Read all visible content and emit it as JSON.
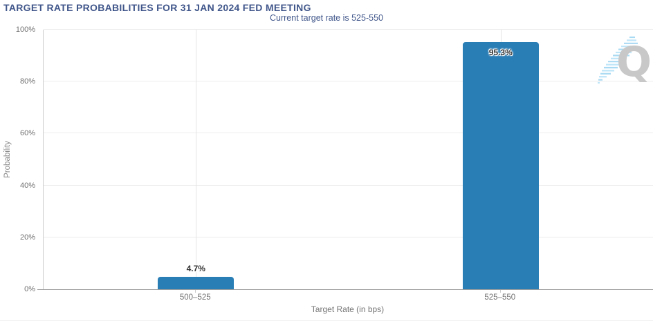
{
  "chart_data": {
    "type": "bar",
    "title": "TARGET RATE PROBABILITIES FOR 31 JAN 2024 FED MEETING",
    "subtitle": "Current target rate is 525-550",
    "categories": [
      "500–525",
      "525–550"
    ],
    "values": [
      4.7,
      95.3
    ],
    "value_labels": [
      "4.7%",
      "95.3%"
    ],
    "xlabel": "Target Rate (in bps)",
    "ylabel": "Probability",
    "ylim": [
      0,
      100
    ],
    "yticks": [
      "0%",
      "20%",
      "40%",
      "60%",
      "80%",
      "100%"
    ],
    "grid": true,
    "legend": false,
    "bar_color": "#2a7eb6",
    "title_color": "#40568a",
    "watermark_letter": "Q"
  }
}
